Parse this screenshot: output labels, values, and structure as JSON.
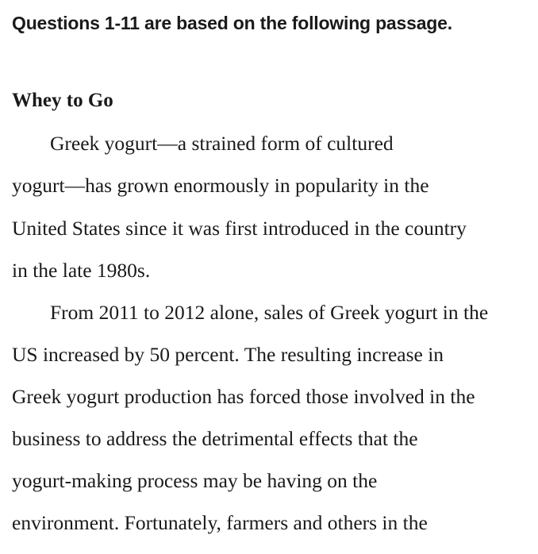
{
  "instructions": "Questions 1-11 are based on the following passage.",
  "passage": {
    "title": "Whey to Go",
    "lines": [
      "Greek yogurt—a strained form of cultured",
      "yogurt—has grown enormously in popularity in the",
      "United States since it was first introduced in the country",
      "in the late 1980s.",
      "From 2011 to 2012 alone, sales of Greek yogurt in the",
      "US increased by 50 percent. The resulting increase in",
      "Greek yogurt production has forced those involved in the",
      "business to address the detrimental effects that the",
      "yogurt-making process may be having on the",
      "environment. Fortunately, farmers and others in the"
    ]
  }
}
